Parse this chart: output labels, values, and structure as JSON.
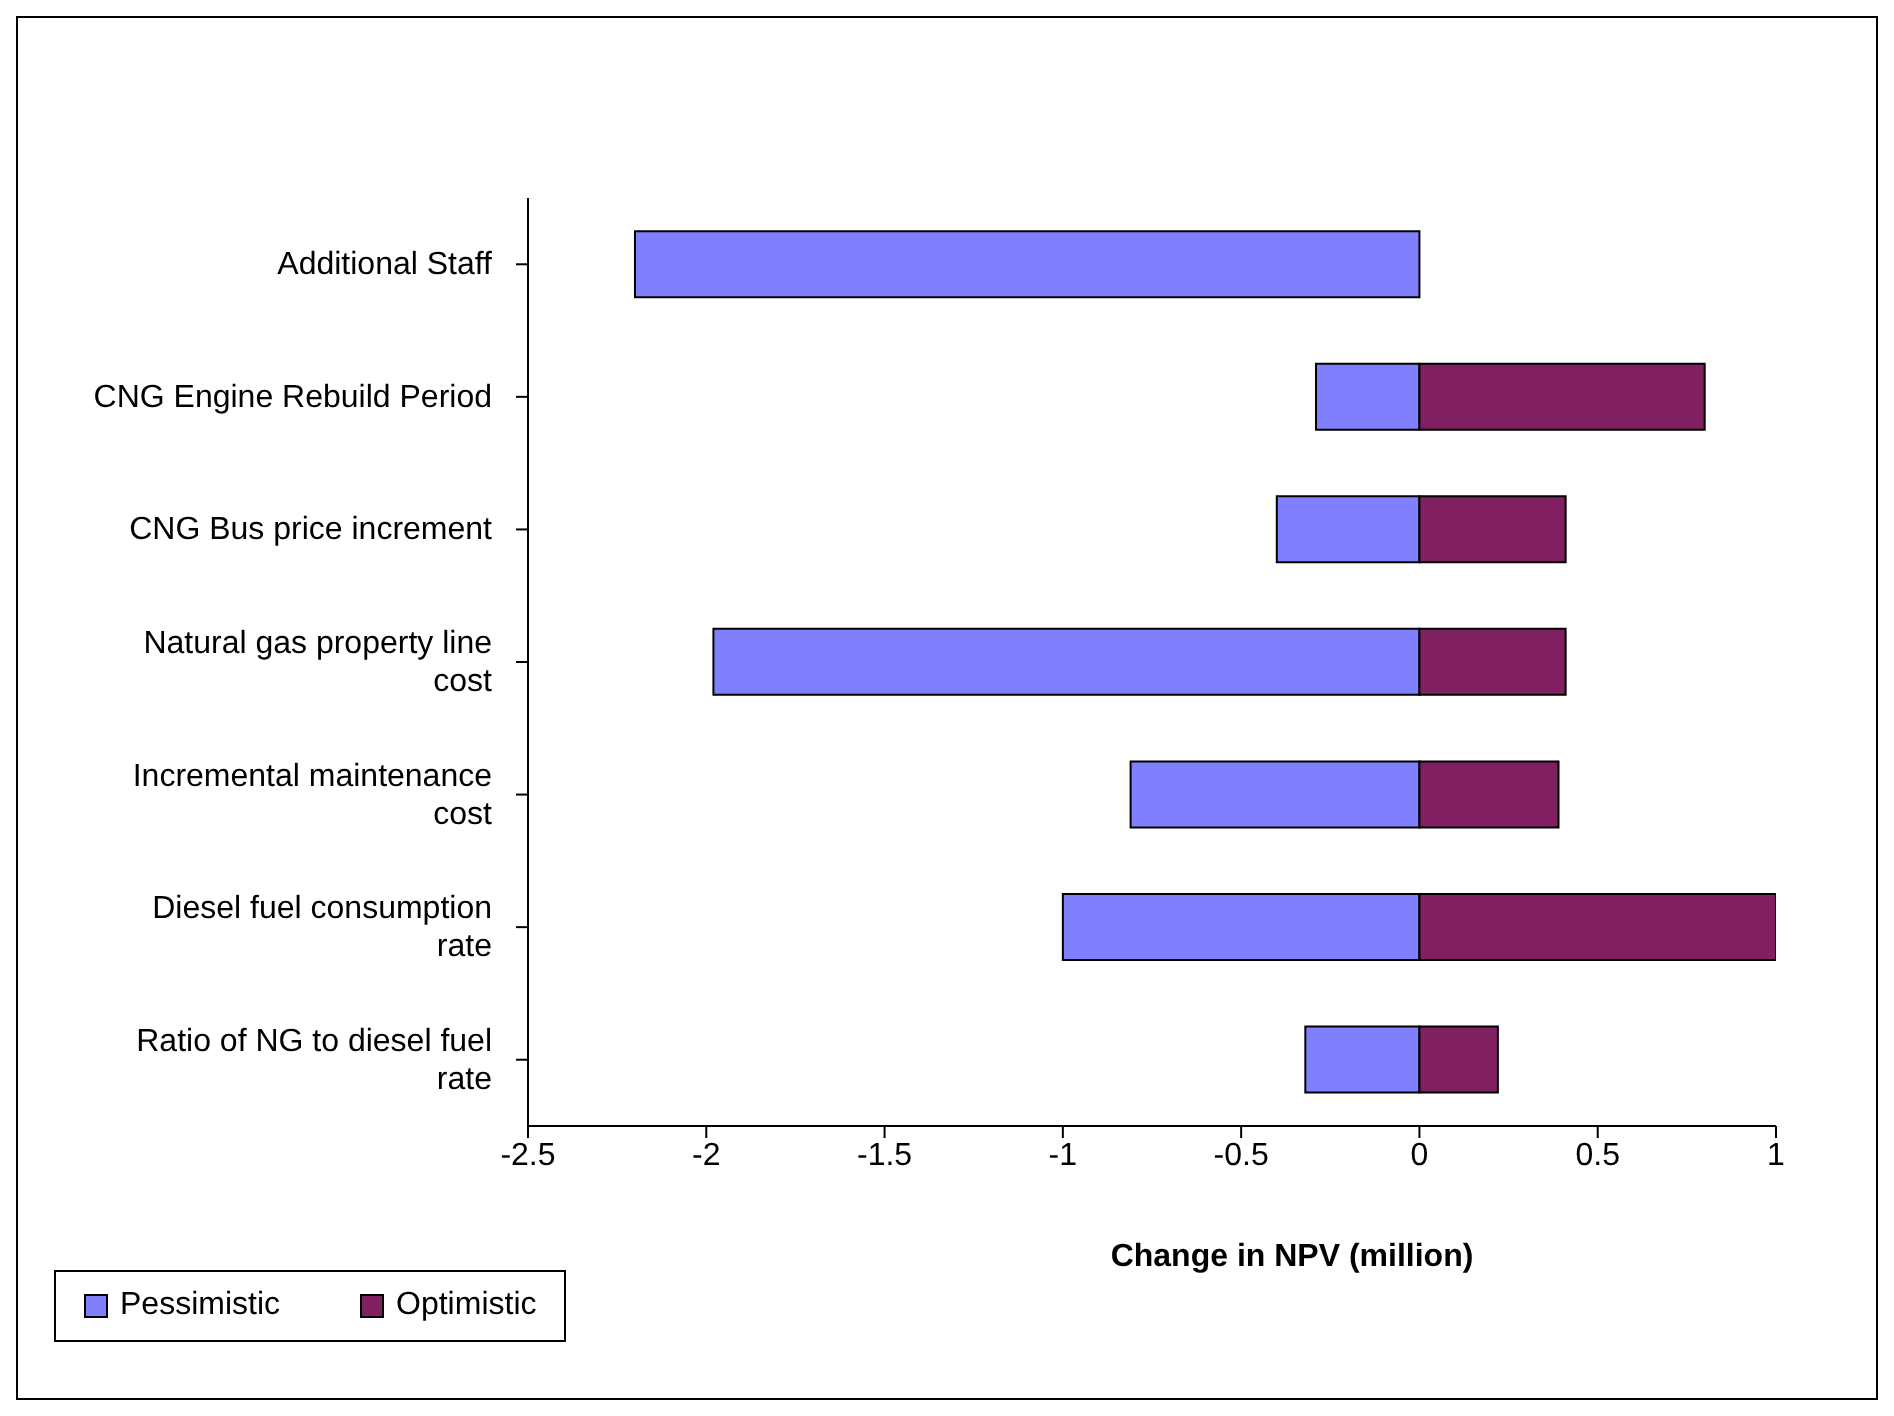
{
  "chart_data": {
    "type": "bar",
    "orientation": "horizontal",
    "stacked": true,
    "xlabel": "Change in NPV (million)",
    "categories": [
      "Additional Staff",
      "CNG Engine Rebuild Period",
      "CNG Bus price increment",
      "Natural gas property line cost",
      "Incremental maintenance cost",
      "Diesel fuel consumption rate",
      "Ratio of NG to diesel fuel rate"
    ],
    "series": [
      {
        "name": "Pessimistic",
        "color": "#8080ff",
        "values": [
          -2.2,
          -0.29,
          -0.4,
          -1.98,
          -0.81,
          -1.0,
          -0.32
        ]
      },
      {
        "name": "Optimistic",
        "color": "#802060",
        "values": [
          null,
          0.8,
          0.41,
          0.41,
          0.39,
          1.0,
          0.22
        ]
      }
    ],
    "xlim": [
      -2.5,
      1
    ],
    "xticks": [
      -2.5,
      -2,
      -1.5,
      -1,
      -0.5,
      0,
      0.5,
      1
    ],
    "grid": false,
    "legend": "bottom left"
  }
}
